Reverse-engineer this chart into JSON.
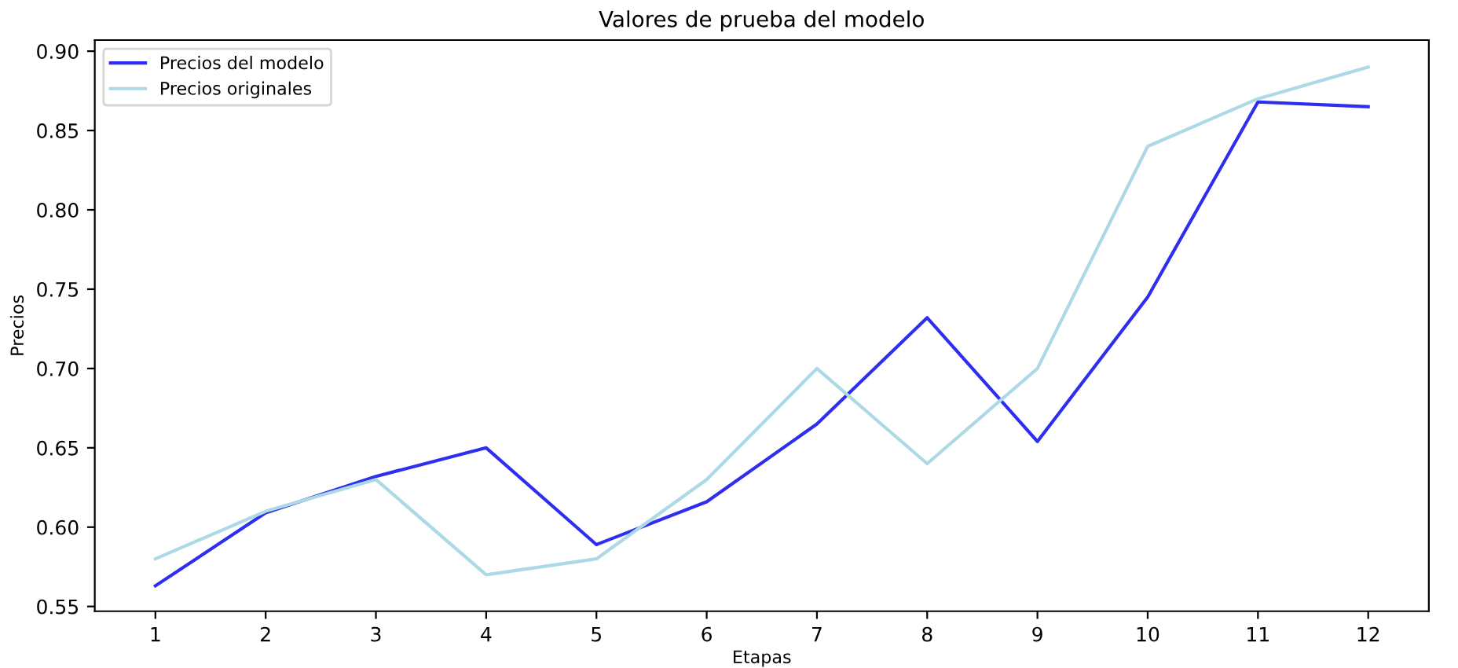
{
  "chart_data": {
    "type": "line",
    "title": "Valores de prueba del modelo",
    "xlabel": "Etapas",
    "ylabel": "Precios",
    "x": [
      1,
      2,
      3,
      4,
      5,
      6,
      7,
      8,
      9,
      10,
      11,
      12
    ],
    "series": [
      {
        "name": "Precios del modelo",
        "color": "#2e2ef0",
        "values": [
          0.563,
          0.609,
          0.632,
          0.65,
          0.589,
          0.616,
          0.665,
          0.732,
          0.654,
          0.745,
          0.868,
          0.865
        ]
      },
      {
        "name": "Precios originales",
        "color": "#add8e6",
        "values": [
          0.58,
          0.61,
          0.63,
          0.57,
          0.58,
          0.63,
          0.7,
          0.64,
          0.7,
          0.84,
          0.87,
          0.89
        ]
      }
    ],
    "xlim": [
      0.45,
      12.55
    ],
    "xticks": [
      1,
      2,
      3,
      4,
      5,
      6,
      7,
      8,
      9,
      10,
      11,
      12
    ],
    "ylim": [
      0.547,
      0.907
    ],
    "yticks": [
      {
        "value": 0.55,
        "label": "0.55"
      },
      {
        "value": 0.6,
        "label": "0.60"
      },
      {
        "value": 0.65,
        "label": "0.65"
      },
      {
        "value": 0.7,
        "label": "0.70"
      },
      {
        "value": 0.75,
        "label": "0.75"
      },
      {
        "value": 0.8,
        "label": "0.80"
      },
      {
        "value": 0.85,
        "label": "0.85"
      },
      {
        "value": 0.9,
        "label": "0.90"
      }
    ],
    "legend": "top left",
    "grid": false,
    "marker": "none",
    "line_style": "solid"
  }
}
